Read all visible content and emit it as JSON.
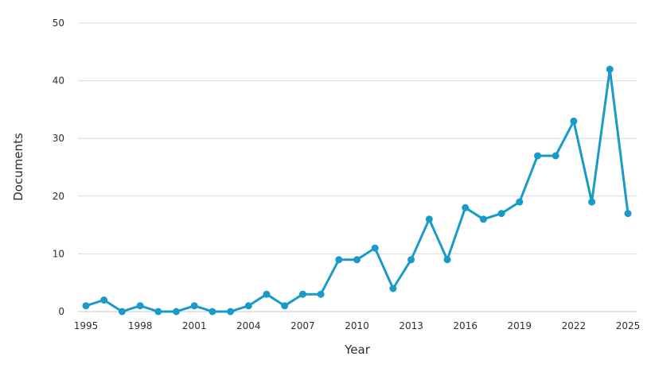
{
  "chart_data": {
    "type": "line",
    "title": "",
    "xlabel": "Year",
    "ylabel": "Documents",
    "ylim": [
      0,
      50
    ],
    "yticks": [
      "0",
      "10",
      "20",
      "30",
      "40",
      "50"
    ],
    "xticks": [
      "1995",
      "1998",
      "2001",
      "2004",
      "2007",
      "2010",
      "2013",
      "2016",
      "2019",
      "2022",
      "2025"
    ],
    "grid": true,
    "color": "#1a9ac9",
    "x": [
      1995,
      1996,
      1997,
      1998,
      1999,
      2000,
      2001,
      2002,
      2003,
      2004,
      2005,
      2006,
      2007,
      2008,
      2009,
      2010,
      2011,
      2012,
      2013,
      2014,
      2015,
      2016,
      2017,
      2018,
      2019,
      2020,
      2021,
      2022,
      2023,
      2024,
      2025
    ],
    "series": [
      {
        "values": [
          1,
          2,
          0,
          1,
          0,
          0,
          1,
          0,
          0,
          1,
          3,
          1,
          3,
          3,
          9,
          9,
          11,
          4,
          9,
          16,
          9,
          18,
          16,
          17,
          19,
          27,
          27,
          33,
          19,
          42,
          17
        ]
      }
    ]
  }
}
